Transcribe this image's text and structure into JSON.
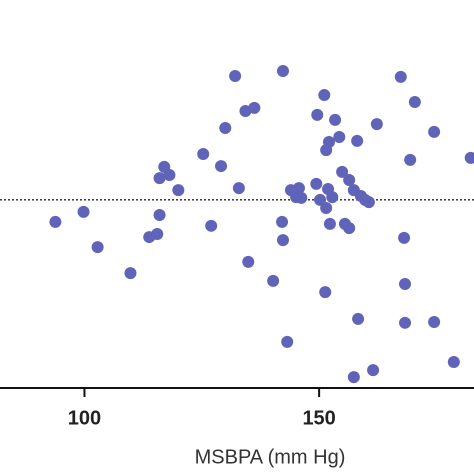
{
  "chart_data": {
    "type": "scatter",
    "x_label": "MSBPA (mm Hg)",
    "xlim": [
      82,
      183
    ],
    "xticks": [
      100,
      150
    ],
    "ylim": [
      0,
      100
    ],
    "reference_line": 48.5,
    "color": "#5f64b8",
    "series": [
      {
        "name": null,
        "color": "#5f64b8",
        "x": [
          93.8,
          99.8,
          102.8,
          109.8,
          113.8,
          115.5,
          116.0,
          116.0,
          117.0,
          118.1,
          120.0,
          125.3,
          127.0,
          129.1,
          130.0,
          132.1,
          132.9,
          134.3,
          134.9,
          136.2,
          140.2,
          142.3,
          142.1,
          142.3,
          143.2,
          144.0,
          145.1,
          145.7,
          146.2,
          149.6,
          149.4,
          150.2,
          151.1,
          151.3,
          151.5,
          151.5,
          152.1,
          151.9,
          152.3,
          152.8,
          153.4,
          154.3,
          154.9,
          155.5,
          156.4,
          156.4,
          157.4,
          158.1,
          158.3,
          158.9,
          159.8,
          160.6,
          161.5,
          162.3,
          157.4,
          167.4,
          170.4,
          168.1,
          168.3,
          168.3,
          169.4,
          174.5,
          174.5,
          178.7,
          182.3
        ],
        "values": [
          42.8,
          45.4,
          36.3,
          29.6,
          38.9,
          39.7,
          44.6,
          54.1,
          57.0,
          54.9,
          51.0,
          60.3,
          41.8,
          57.2,
          67.0,
          80.4,
          51.5,
          71.4,
          32.5,
          72.2,
          27.6,
          81.7,
          42.8,
          38.1,
          11.9,
          51.0,
          49.2,
          51.5,
          49.0,
          70.4,
          52.6,
          48.5,
          75.5,
          24.7,
          46.4,
          61.3,
          63.4,
          51.3,
          42.3,
          49.2,
          69.1,
          64.7,
          55.7,
          42.3,
          53.6,
          41.2,
          51.0,
          63.7,
          17.8,
          49.5,
          48.5,
          47.9,
          4.6,
          68.0,
          2.8,
          80.2,
          73.7,
          38.7,
          26.8,
          16.8,
          58.8,
          66.0,
          17.0,
          6.7,
          59.3
        ]
      }
    ]
  }
}
